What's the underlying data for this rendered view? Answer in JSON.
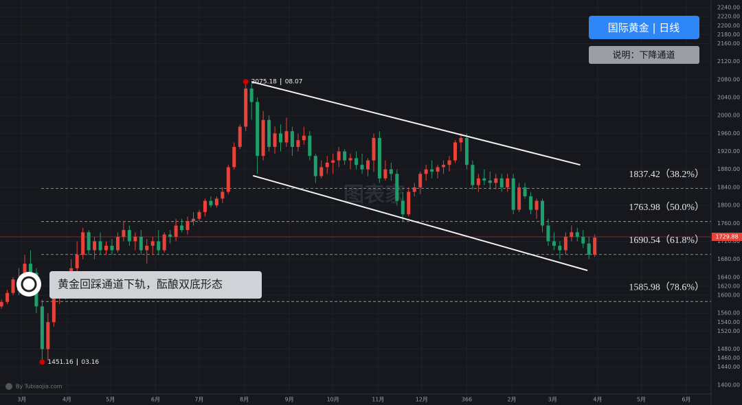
{
  "chart_data": {
    "type": "candlestick",
    "title": "国际黄金 | 日线",
    "subtitle": "说明：下降通道",
    "note": "黄金回踩通道下轨，酝酿双底形态",
    "watermark": "图表家",
    "credit": "By Tubiaojia.com",
    "colors": {
      "up": "#e8433b",
      "down": "#1f9e6b"
    },
    "grid": true,
    "xlim": [
      45,
      534
    ],
    "ylim": [
      1380,
      2257
    ],
    "xticks": [
      {
        "value": 60,
        "label": "3月"
      },
      {
        "value": 91,
        "label": "4月"
      },
      {
        "value": 121,
        "label": "5月"
      },
      {
        "value": 152,
        "label": "6月"
      },
      {
        "value": 182,
        "label": "7月"
      },
      {
        "value": 213,
        "label": "8月"
      },
      {
        "value": 244,
        "label": "9月"
      },
      {
        "value": 274,
        "label": "10月"
      },
      {
        "value": 305,
        "label": "11月"
      },
      {
        "value": 335,
        "label": "12月"
      },
      366,
      {
        "value": 397,
        "label": "2月"
      },
      {
        "value": 425,
        "label": "3月"
      },
      {
        "value": 456,
        "label": "4月"
      },
      {
        "value": 486,
        "label": "5月"
      },
      {
        "value": 517,
        "label": "6月"
      }
    ],
    "yticks": [
      {
        "value": 1400,
        "label": "1400.00"
      },
      {
        "value": 1440,
        "label": "1440.00"
      },
      {
        "value": 1460,
        "label": "1460.00"
      },
      {
        "value": 1480,
        "label": "1480.00"
      },
      {
        "value": 1520,
        "label": "1520.00"
      },
      {
        "value": 1540,
        "label": "1540.00"
      },
      {
        "value": 1560,
        "label": "1560.00"
      },
      {
        "value": 1600,
        "label": "1600.00"
      },
      {
        "value": 1620,
        "label": "1620.00"
      },
      {
        "value": 1640,
        "label": "1640.00"
      },
      {
        "value": 1680,
        "label": "1680.00"
      },
      {
        "value": 1720,
        "label": "1720.00"
      },
      {
        "value": 1760,
        "label": "1760.00"
      },
      {
        "value": 1800,
        "label": "1800.00"
      },
      {
        "value": 1840,
        "label": "1840.00"
      },
      {
        "value": 1880,
        "label": "1880.00"
      },
      {
        "value": 1920,
        "label": "1920.00"
      },
      {
        "value": 1960,
        "label": "1960.00"
      },
      {
        "value": 2000,
        "label": "2000.00"
      },
      {
        "value": 2040,
        "label": "2040.00"
      },
      {
        "value": 2080,
        "label": "2080.00"
      },
      {
        "value": 2120,
        "label": "2120.00"
      },
      {
        "value": 2160,
        "label": "2160.00"
      },
      {
        "value": 2180,
        "label": "2180.00"
      },
      {
        "value": 2200,
        "label": "2200.00"
      },
      {
        "value": 2220,
        "label": "2220.00"
      },
      {
        "value": 2240,
        "label": "2240.00"
      }
    ],
    "last_price": 1729.88,
    "x": [
      46,
      50,
      54,
      58,
      62,
      66,
      70,
      74,
      78,
      82,
      86,
      90,
      94,
      98,
      102,
      106,
      110,
      114,
      118,
      122,
      126,
      130,
      134,
      138,
      142,
      146,
      150,
      154,
      158,
      162,
      166,
      170,
      174,
      178,
      182,
      186,
      190,
      194,
      198,
      202,
      206,
      210,
      214,
      218,
      222,
      226,
      230,
      234,
      238,
      242,
      246,
      250,
      254,
      258,
      262,
      266,
      270,
      274,
      278,
      282,
      286,
      290,
      294,
      298,
      302,
      306,
      310,
      314,
      318,
      322,
      326,
      330,
      334,
      338,
      342,
      346,
      350,
      354,
      358,
      362,
      366,
      370,
      374,
      378,
      382,
      386,
      390,
      394,
      398,
      402,
      406,
      410,
      414,
      418,
      422,
      426,
      430,
      434,
      438,
      442,
      446,
      450,
      454
    ],
    "open": [
      1575,
      1585,
      1605,
      1635,
      1610,
      1670,
      1650,
      1575,
      1480,
      1540,
      1610,
      1620,
      1610,
      1660,
      1690,
      1740,
      1700,
      1720,
      1700,
      1710,
      1700,
      1730,
      1745,
      1720,
      1730,
      1700,
      1710,
      1720,
      1700,
      1735,
      1730,
      1755,
      1745,
      1765,
      1770,
      1785,
      1810,
      1800,
      1815,
      1830,
      1885,
      1930,
      1975,
      2060,
      2030,
      1910,
      1990,
      1930,
      1960,
      1940,
      1965,
      1930,
      1945,
      1955,
      1910,
      1865,
      1885,
      1895,
      1900,
      1920,
      1900,
      1905,
      1890,
      1880,
      1900,
      1950,
      1860,
      1880,
      1870,
      1810,
      1780,
      1830,
      1840,
      1870,
      1880,
      1875,
      1885,
      1890,
      1900,
      1940,
      1950,
      1890,
      1845,
      1860,
      1855,
      1850,
      1860,
      1840,
      1860,
      1790,
      1840,
      1820,
      1790,
      1810,
      1755,
      1720,
      1710,
      1700,
      1730,
      1740,
      1730,
      1715,
      1690
    ],
    "high": [
      1590,
      1612,
      1640,
      1660,
      1690,
      1700,
      1660,
      1590,
      1560,
      1620,
      1640,
      1650,
      1680,
      1720,
      1750,
      1745,
      1730,
      1740,
      1720,
      1725,
      1740,
      1765,
      1755,
      1740,
      1745,
      1725,
      1730,
      1745,
      1740,
      1745,
      1770,
      1770,
      1775,
      1785,
      1790,
      1815,
      1820,
      1820,
      1840,
      1890,
      1940,
      1980,
      2075.18,
      2070,
      2040,
      2010,
      2000,
      1975,
      1980,
      1995,
      1975,
      1960,
      1975,
      1965,
      1915,
      1900,
      1910,
      1915,
      1930,
      1925,
      1915,
      1920,
      1915,
      1905,
      1960,
      1965,
      1900,
      1895,
      1880,
      1830,
      1840,
      1850,
      1875,
      1890,
      1900,
      1890,
      1900,
      1910,
      1945,
      1960,
      1960,
      1900,
      1870,
      1880,
      1875,
      1870,
      1870,
      1870,
      1870,
      1850,
      1850,
      1830,
      1815,
      1815,
      1770,
      1740,
      1720,
      1740,
      1755,
      1750,
      1745,
      1730,
      1735
    ],
    "low": [
      1570,
      1580,
      1600,
      1600,
      1600,
      1640,
      1560,
      1451.16,
      1455,
      1530,
      1580,
      1590,
      1600,
      1650,
      1680,
      1690,
      1680,
      1690,
      1690,
      1690,
      1695,
      1720,
      1710,
      1700,
      1690,
      1670,
      1690,
      1690,
      1695,
      1715,
      1720,
      1740,
      1735,
      1755,
      1765,
      1775,
      1795,
      1795,
      1805,
      1825,
      1880,
      1925,
      1965,
      1990,
      1870,
      1900,
      1920,
      1915,
      1920,
      1930,
      1910,
      1920,
      1935,
      1900,
      1850,
      1860,
      1870,
      1870,
      1885,
      1890,
      1880,
      1880,
      1870,
      1865,
      1875,
      1850,
      1855,
      1855,
      1800,
      1765,
      1775,
      1820,
      1825,
      1855,
      1860,
      1860,
      1870,
      1875,
      1895,
      1920,
      1880,
      1835,
      1830,
      1845,
      1835,
      1835,
      1830,
      1830,
      1780,
      1785,
      1815,
      1780,
      1770,
      1740,
      1710,
      1700,
      1680,
      1690,
      1720,
      1720,
      1705,
      1680,
      1685
    ],
    "close": [
      1585,
      1605,
      1635,
      1610,
      1670,
      1650,
      1575,
      1480,
      1540,
      1610,
      1620,
      1610,
      1660,
      1690,
      1740,
      1700,
      1720,
      1700,
      1710,
      1700,
      1730,
      1745,
      1720,
      1730,
      1700,
      1710,
      1720,
      1700,
      1735,
      1730,
      1755,
      1745,
      1765,
      1770,
      1785,
      1810,
      1800,
      1815,
      1830,
      1885,
      1930,
      1975,
      2060,
      2030,
      1910,
      1990,
      1930,
      1960,
      1940,
      1965,
      1930,
      1945,
      1955,
      1910,
      1865,
      1885,
      1895,
      1900,
      1920,
      1900,
      1905,
      1890,
      1880,
      1900,
      1950,
      1860,
      1880,
      1870,
      1810,
      1780,
      1830,
      1840,
      1870,
      1880,
      1875,
      1885,
      1890,
      1900,
      1940,
      1950,
      1890,
      1845,
      1860,
      1855,
      1850,
      1860,
      1840,
      1860,
      1790,
      1840,
      1820,
      1790,
      1810,
      1755,
      1720,
      1710,
      1700,
      1730,
      1740,
      1730,
      1715,
      1690,
      1728
    ],
    "extremes": [
      {
        "x": 214,
        "y": 2075.18,
        "date": "08.07"
      },
      {
        "x": 74,
        "y": 1451.16,
        "date": "03.16"
      }
    ],
    "channel": [
      {
        "x": [
          218,
          444
        ],
        "y": [
          2075,
          1890
        ]
      },
      {
        "x": [
          219,
          449
        ],
        "y": [
          1866,
          1655
        ]
      }
    ],
    "levels": [
      {
        "value": 1837.42,
        "label": "1837.42（38.2%）"
      },
      {
        "value": 1763.98,
        "label": "1763.98（50.0%）"
      },
      {
        "value": 1690.54,
        "label": "1690.54（61.8%）"
      },
      {
        "value": 1585.98,
        "label": "1585.98（78.6%）"
      }
    ]
  }
}
